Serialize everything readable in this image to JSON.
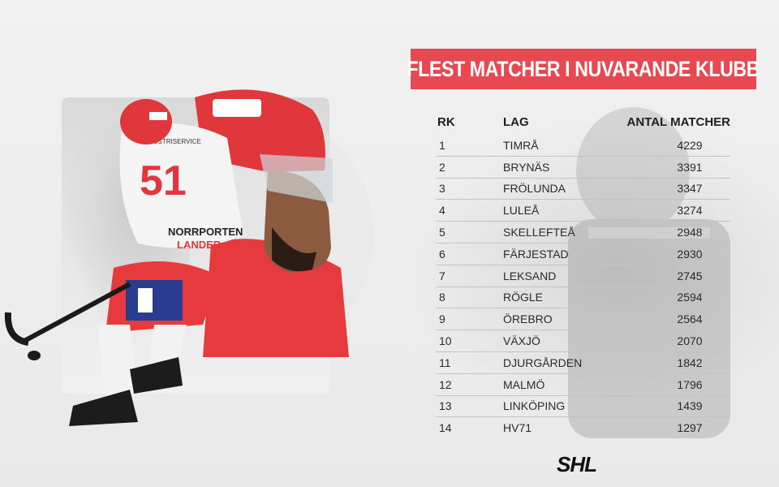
{
  "header": {
    "title": "FLEST MATCHER  I NUVARANDE KLUBB"
  },
  "player": {
    "jersey_number": "51",
    "sponsor_1": "NORRPORTEN",
    "sponsor_2": "LANDER",
    "sponsor_3": "INDUSTRISERVICE"
  },
  "table": {
    "headers": {
      "rank": "RK",
      "team": "LAG",
      "games": "ANTAL MATCHER"
    },
    "rows": [
      {
        "rank": "1",
        "team": "TIMRÅ",
        "games": "4229"
      },
      {
        "rank": "2",
        "team": "BRYNÄS",
        "games": "3391"
      },
      {
        "rank": "3",
        "team": "FRÖLUNDA",
        "games": "3347"
      },
      {
        "rank": "4",
        "team": "LULEÅ",
        "games": "3274"
      },
      {
        "rank": "5",
        "team": "SKELLEFTEÅ",
        "games": "2948"
      },
      {
        "rank": "6",
        "team": "FÄRJESTAD",
        "games": "2930"
      },
      {
        "rank": "7",
        "team": "LEKSAND",
        "games": "2745"
      },
      {
        "rank": "8",
        "team": "RÖGLE",
        "games": "2594"
      },
      {
        "rank": "9",
        "team": "ÖREBRO",
        "games": "2564"
      },
      {
        "rank": "10",
        "team": "VÄXJÖ",
        "games": "2070"
      },
      {
        "rank": "11",
        "team": "DJURGÅRDEN",
        "games": "1842"
      },
      {
        "rank": "12",
        "team": "MALMÖ",
        "games": "1796"
      },
      {
        "rank": "13",
        "team": "LINKÖPING",
        "games": "1439"
      },
      {
        "rank": "14",
        "team": "HV71",
        "games": "1297"
      }
    ]
  },
  "brand": {
    "logo_text": "SHL",
    "accent": "#e8484f",
    "text_color": "#1e1e1e"
  }
}
